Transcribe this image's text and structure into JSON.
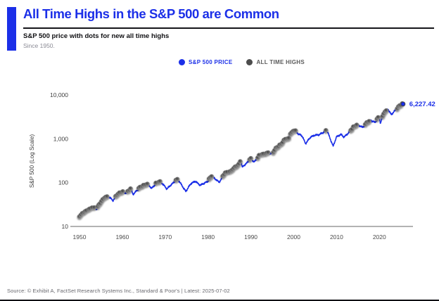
{
  "header": {
    "title": "All Time Highs in the S&P 500 are Common",
    "subtitle": "S&P 500 price with dots for new all time highs",
    "since": "Since 1950."
  },
  "legend": [
    {
      "label": "S&P 500 PRICE",
      "color": "#1b2fe8",
      "text_color": "#1b2fe8"
    },
    {
      "label": "ALL TIME HIGHS",
      "color": "#4d4d4d",
      "text_color": "#5a5a5a"
    }
  ],
  "colors": {
    "accent": "#1b2fe8",
    "line": "#1b2fe8",
    "dot_gray": "#8f8f8f",
    "dot_center": "#3f3f3f",
    "dot_rim": "#c4c4c4",
    "axis": "#9a9a9a",
    "tick_text": "#3f3f3f"
  },
  "chart_data": {
    "type": "line",
    "title": "S&P 500 price with dots for new all time highs",
    "xlabel": "",
    "ylabel": "S&P 500 (Log Scale)",
    "y_scale": "log10",
    "x_range": [
      1950,
      2025.5
    ],
    "y_range": [
      10,
      10000
    ],
    "x_ticks": [
      "1950",
      "1960",
      "1970",
      "1980",
      "1990",
      "2000",
      "2010",
      "2020"
    ],
    "x_tick_values": [
      1950,
      1960,
      1970,
      1980,
      1990,
      2000,
      2010,
      2020
    ],
    "y_ticks": [
      {
        "label": "10",
        "value": 10
      },
      {
        "label": "100",
        "value": 100
      },
      {
        "label": "1,000",
        "value": 1000
      },
      {
        "label": "10,000",
        "value": 10000
      }
    ],
    "grid": false,
    "legend_position": "top-center",
    "ath_rule": "gray dot plotted wherever the price sets a new all-time high",
    "end_label": {
      "text": "6,227.42",
      "value": 6227.42
    },
    "series": [
      {
        "name": "S&P 500 PRICE",
        "points": [
          [
            1950.0,
            16.9
          ],
          [
            1951.0,
            20.4
          ],
          [
            1952.0,
            23.8
          ],
          [
            1953.0,
            26.6
          ],
          [
            1954.0,
            24.8
          ],
          [
            1955.0,
            36.0
          ],
          [
            1956.0,
            45.5
          ],
          [
            1957.0,
            46.7
          ],
          [
            1957.8,
            39.0
          ],
          [
            1959.0,
            55.2
          ],
          [
            1960.0,
            59.9
          ],
          [
            1961.0,
            58.1
          ],
          [
            1962.0,
            71.6
          ],
          [
            1962.5,
            54.0
          ],
          [
            1964.0,
            75.0
          ],
          [
            1965.0,
            84.8
          ],
          [
            1966.0,
            92.4
          ],
          [
            1966.8,
            74.0
          ],
          [
            1968.0,
            96.5
          ],
          [
            1968.9,
            106.5
          ],
          [
            1970.4,
            72.0
          ],
          [
            1972.0,
            102.1
          ],
          [
            1973.0,
            118.1
          ],
          [
            1974.8,
            63.0
          ],
          [
            1976.0,
            95.0
          ],
          [
            1977.0,
            107.5
          ],
          [
            1978.2,
            87.0
          ],
          [
            1980.0,
            107.9
          ],
          [
            1980.9,
            140.5
          ],
          [
            1982.6,
            102.0
          ],
          [
            1984.0,
            164.9
          ],
          [
            1985.0,
            167.2
          ],
          [
            1986.0,
            211.3
          ],
          [
            1987.0,
            242.2
          ],
          [
            1987.7,
            336.0
          ],
          [
            1987.95,
            225.0
          ],
          [
            1989.0,
            277.7
          ],
          [
            1990.0,
            353.4
          ],
          [
            1990.8,
            295.0
          ],
          [
            1992.0,
            417.1
          ],
          [
            1993.0,
            435.7
          ],
          [
            1994.0,
            466.5
          ],
          [
            1995.0,
            459.3
          ],
          [
            1996.0,
            615.9
          ],
          [
            1997.0,
            740.7
          ],
          [
            1998.0,
            970.4
          ],
          [
            1998.8,
            957.0
          ],
          [
            1999.0,
            1229.2
          ],
          [
            2000.2,
            1527.5
          ],
          [
            2001.0,
            1320.3
          ],
          [
            2002.0,
            1148.1
          ],
          [
            2002.75,
            776.8
          ],
          [
            2004.0,
            1111.9
          ],
          [
            2005.0,
            1211.9
          ],
          [
            2006.0,
            1248.3
          ],
          [
            2007.0,
            1418.3
          ],
          [
            2007.75,
            1565.2
          ],
          [
            2009.2,
            676.5
          ],
          [
            2010.0,
            1115.1
          ],
          [
            2011.0,
            1257.6
          ],
          [
            2011.75,
            1099.2
          ],
          [
            2013.0,
            1426.2
          ],
          [
            2014.0,
            1848.4
          ],
          [
            2015.0,
            2058.9
          ],
          [
            2016.1,
            1829.1
          ],
          [
            2017.0,
            2238.8
          ],
          [
            2018.0,
            2673.6
          ],
          [
            2018.95,
            2351.1
          ],
          [
            2020.0,
            3230.8
          ],
          [
            2020.22,
            2237.4
          ],
          [
            2021.0,
            3756.1
          ],
          [
            2022.0,
            4766.2
          ],
          [
            2022.75,
            3577.0
          ],
          [
            2024.0,
            4769.8
          ],
          [
            2025.0,
            5881.6
          ],
          [
            2025.5,
            6227.42
          ]
        ]
      }
    ]
  },
  "footer": {
    "source": "Source: © Exhibit A, FactSet Research Systems Inc., Standard & Poor's | Latest: 2025-07-02"
  }
}
